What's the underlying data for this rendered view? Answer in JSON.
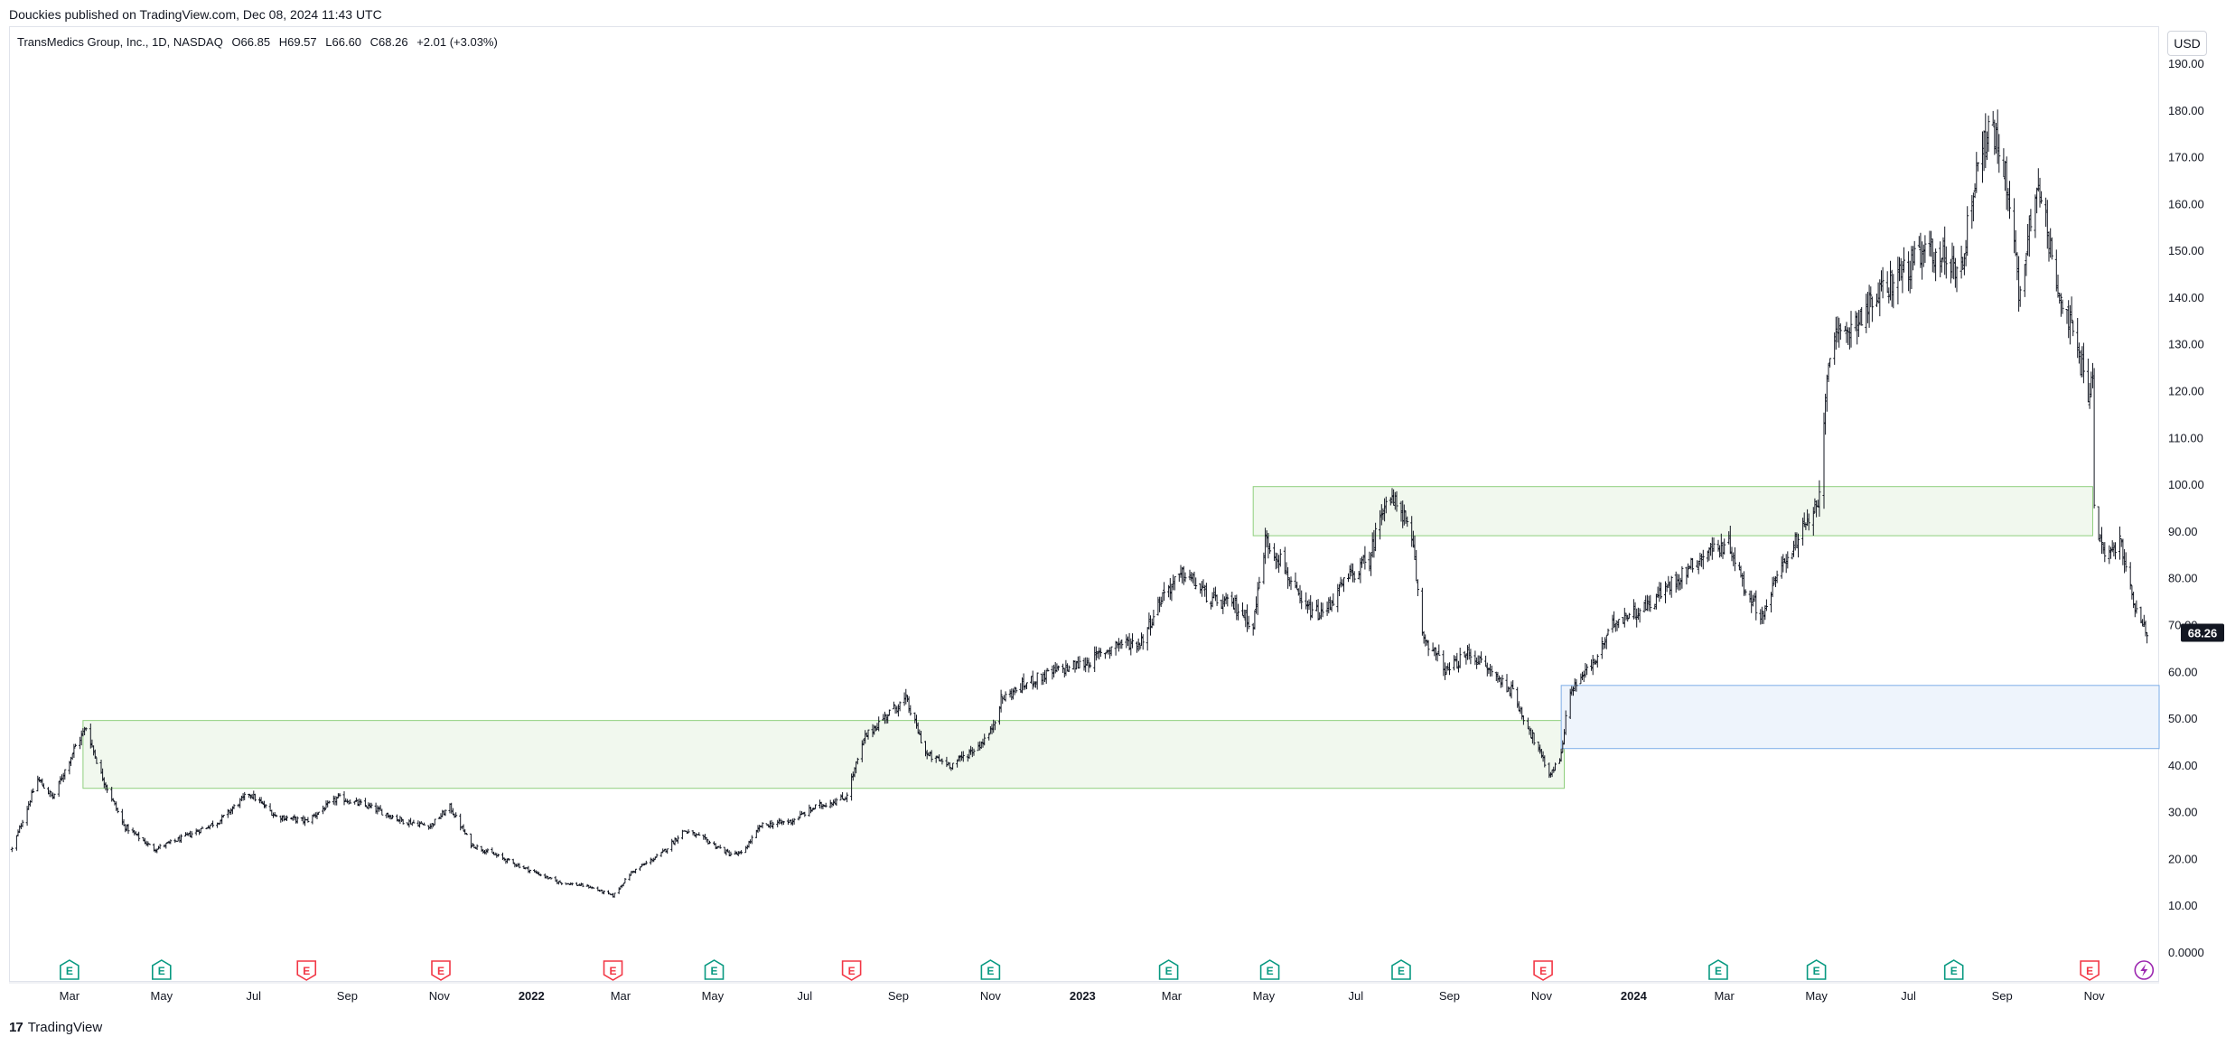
{
  "header": {
    "published": "Douckies published on TradingView.com, Dec 08, 2024 11:43 UTC"
  },
  "legend": {
    "symbol": "TransMedics Group, Inc., 1D, NASDAQ",
    "open": "O66.85",
    "high": "H69.57",
    "low": "L66.60",
    "close": "C68.26",
    "change": "+2.01 (+3.03%)"
  },
  "currency_button": "USD",
  "footer": {
    "brand": "TradingView",
    "logo_text": "17"
  },
  "colors": {
    "candle": "#131722",
    "green_zone_fill": "#f1f8ee",
    "green_zone_border": "#8fcf7d",
    "blue_zone_fill": "#eef4fc",
    "blue_zone_border": "#7eaee8",
    "earnings_green": "#089981",
    "earnings_red": "#f23645",
    "dividend_purple": "#9c27b0",
    "price_label_bg": "#131722"
  },
  "chart_data": {
    "type": "ohlc",
    "title": "TransMedics Group, Inc., 1D, NASDAQ",
    "ylim": [
      0,
      190
    ],
    "y_ticks": [
      "190.00",
      "180.00",
      "170.00",
      "160.00",
      "150.00",
      "140.00",
      "130.00",
      "120.00",
      "110.00",
      "100.00",
      "90.00",
      "80.00",
      "70.00",
      "60.00",
      "50.00",
      "40.00",
      "30.00",
      "20.00",
      "10.00",
      "0.0000"
    ],
    "y_tick_values": [
      190,
      180,
      170,
      160,
      150,
      140,
      130,
      120,
      110,
      100,
      90,
      80,
      70,
      60,
      50,
      40,
      30,
      20,
      10,
      0
    ],
    "x_ticks": [
      {
        "label": "Mar",
        "date": "2021-03-01",
        "bold": false
      },
      {
        "label": "May",
        "date": "2021-05-01",
        "bold": false
      },
      {
        "label": "Jul",
        "date": "2021-07-01",
        "bold": false
      },
      {
        "label": "Sep",
        "date": "2021-09-01",
        "bold": false
      },
      {
        "label": "Nov",
        "date": "2021-11-01",
        "bold": false
      },
      {
        "label": "2022",
        "date": "2022-01-01",
        "bold": true
      },
      {
        "label": "Mar",
        "date": "2022-03-01",
        "bold": false
      },
      {
        "label": "May",
        "date": "2022-05-01",
        "bold": false
      },
      {
        "label": "Jul",
        "date": "2022-07-01",
        "bold": false
      },
      {
        "label": "Sep",
        "date": "2022-09-01",
        "bold": false
      },
      {
        "label": "Nov",
        "date": "2022-11-01",
        "bold": false
      },
      {
        "label": "2023",
        "date": "2023-01-01",
        "bold": true
      },
      {
        "label": "Mar",
        "date": "2023-03-01",
        "bold": false
      },
      {
        "label": "May",
        "date": "2023-05-01",
        "bold": false
      },
      {
        "label": "Jul",
        "date": "2023-07-01",
        "bold": false
      },
      {
        "label": "Sep",
        "date": "2023-09-01",
        "bold": false
      },
      {
        "label": "Nov",
        "date": "2023-11-01",
        "bold": false
      },
      {
        "label": "2024",
        "date": "2024-01-01",
        "bold": true
      },
      {
        "label": "Mar",
        "date": "2024-03-01",
        "bold": false
      },
      {
        "label": "May",
        "date": "2024-05-01",
        "bold": false
      },
      {
        "label": "Jul",
        "date": "2024-07-01",
        "bold": false
      },
      {
        "label": "Sep",
        "date": "2024-09-01",
        "bold": false
      },
      {
        "label": "Nov",
        "date": "2024-11-01",
        "bold": false
      }
    ],
    "x_range": [
      "2021-01-20",
      "2024-12-14"
    ],
    "last_price": "68.26",
    "last_value": 68.26,
    "price_path": [
      [
        "2021-01-22",
        22
      ],
      [
        "2021-02-08",
        37
      ],
      [
        "2021-02-18",
        33
      ],
      [
        "2021-03-05",
        44
      ],
      [
        "2021-03-12",
        48
      ],
      [
        "2021-03-22",
        38
      ],
      [
        "2021-04-06",
        27
      ],
      [
        "2021-04-26",
        22
      ],
      [
        "2021-05-12",
        24
      ],
      [
        "2021-06-08",
        28
      ],
      [
        "2021-06-28",
        34
      ],
      [
        "2021-07-16",
        29
      ],
      [
        "2021-08-05",
        28
      ],
      [
        "2021-08-26",
        33
      ],
      [
        "2021-09-16",
        31
      ],
      [
        "2021-10-08",
        28
      ],
      [
        "2021-10-26",
        27
      ],
      [
        "2021-11-08",
        31
      ],
      [
        "2021-11-22",
        23
      ],
      [
        "2021-12-20",
        19
      ],
      [
        "2022-01-18",
        15
      ],
      [
        "2022-02-08",
        14
      ],
      [
        "2022-02-24",
        12
      ],
      [
        "2022-03-08",
        17
      ],
      [
        "2022-03-28",
        21
      ],
      [
        "2022-04-12",
        26
      ],
      [
        "2022-04-26",
        24
      ],
      [
        "2022-05-12",
        21
      ],
      [
        "2022-05-20",
        21
      ],
      [
        "2022-06-02",
        27
      ],
      [
        "2022-06-22",
        28
      ],
      [
        "2022-07-08",
        31
      ],
      [
        "2022-07-28",
        33
      ],
      [
        "2022-08-10",
        46
      ],
      [
        "2022-08-25",
        51
      ],
      [
        "2022-09-06",
        54
      ],
      [
        "2022-09-20",
        42
      ],
      [
        "2022-10-06",
        40
      ],
      [
        "2022-10-24",
        44
      ],
      [
        "2022-11-01",
        47
      ],
      [
        "2022-11-08",
        54
      ],
      [
        "2022-11-28",
        58
      ],
      [
        "2022-12-14",
        60
      ],
      [
        "2023-01-05",
        62
      ],
      [
        "2023-01-24",
        66
      ],
      [
        "2023-02-08",
        66
      ],
      [
        "2023-02-24",
        77
      ],
      [
        "2023-03-10",
        81
      ],
      [
        "2023-03-28",
        75
      ],
      [
        "2023-04-12",
        74
      ],
      [
        "2023-04-24",
        70
      ],
      [
        "2023-05-02",
        88
      ],
      [
        "2023-05-12",
        84
      ],
      [
        "2023-05-26",
        74
      ],
      [
        "2023-06-08",
        72
      ],
      [
        "2023-06-26",
        80
      ],
      [
        "2023-07-10",
        84
      ],
      [
        "2023-07-20",
        97
      ],
      [
        "2023-07-31",
        95
      ],
      [
        "2023-08-08",
        86
      ],
      [
        "2023-08-14",
        68
      ],
      [
        "2023-08-30",
        60
      ],
      [
        "2023-09-14",
        64
      ],
      [
        "2023-09-28",
        60
      ],
      [
        "2023-10-12",
        56
      ],
      [
        "2023-10-26",
        46
      ],
      [
        "2023-11-06",
        38
      ],
      [
        "2023-11-13",
        41
      ],
      [
        "2023-11-20",
        56
      ],
      [
        "2023-12-06",
        62
      ],
      [
        "2023-12-20",
        71
      ],
      [
        "2024-01-10",
        74
      ],
      [
        "2024-01-30",
        80
      ],
      [
        "2024-02-20",
        86
      ],
      [
        "2024-03-05",
        87
      ],
      [
        "2024-03-14",
        78
      ],
      [
        "2024-03-26",
        72
      ],
      [
        "2024-04-10",
        84
      ],
      [
        "2024-04-22",
        90
      ],
      [
        "2024-05-02",
        95
      ],
      [
        "2024-05-09",
        128
      ],
      [
        "2024-05-24",
        134
      ],
      [
        "2024-06-10",
        140
      ],
      [
        "2024-06-28",
        146
      ],
      [
        "2024-07-16",
        150
      ],
      [
        "2024-08-05",
        146
      ],
      [
        "2024-08-16",
        170
      ],
      [
        "2024-08-26",
        176
      ],
      [
        "2024-09-06",
        162
      ],
      [
        "2024-09-12",
        140
      ],
      [
        "2024-09-24",
        166
      ],
      [
        "2024-10-04",
        148
      ],
      [
        "2024-10-16",
        134
      ],
      [
        "2024-10-28",
        120
      ],
      [
        "2024-10-31",
        123
      ],
      [
        "2024-11-01",
        94
      ],
      [
        "2024-11-08",
        84
      ],
      [
        "2024-11-18",
        88
      ],
      [
        "2024-11-26",
        76
      ],
      [
        "2024-12-06",
        68.26
      ]
    ],
    "zones": [
      {
        "color": "green",
        "x0": "2021-03-10",
        "x1": "2023-11-16",
        "y0": 35,
        "y1": 49.5
      },
      {
        "color": "green",
        "x0": "2023-04-24",
        "x1": "2024-10-31",
        "y0": 89,
        "y1": 99.5
      },
      {
        "color": "blue",
        "x0": "2023-11-14",
        "x1": "2024-12-14",
        "y0": 43.5,
        "y1": 57
      }
    ],
    "events": [
      {
        "type": "E",
        "color": "green",
        "date": "2021-03-01"
      },
      {
        "type": "E",
        "color": "green",
        "date": "2021-05-01"
      },
      {
        "type": "E",
        "color": "red",
        "date": "2021-08-05"
      },
      {
        "type": "E",
        "color": "red",
        "date": "2021-11-02"
      },
      {
        "type": "E",
        "color": "red",
        "date": "2022-02-24"
      },
      {
        "type": "E",
        "color": "green",
        "date": "2022-05-02"
      },
      {
        "type": "E",
        "color": "red",
        "date": "2022-08-01"
      },
      {
        "type": "E",
        "color": "green",
        "date": "2022-11-01"
      },
      {
        "type": "E",
        "color": "green",
        "date": "2023-02-27"
      },
      {
        "type": "E",
        "color": "green",
        "date": "2023-05-05"
      },
      {
        "type": "E",
        "color": "green",
        "date": "2023-07-31"
      },
      {
        "type": "E",
        "color": "red",
        "date": "2023-11-02"
      },
      {
        "type": "E",
        "color": "green",
        "date": "2024-02-26"
      },
      {
        "type": "E",
        "color": "green",
        "date": "2024-05-01"
      },
      {
        "type": "E",
        "color": "green",
        "date": "2024-07-31"
      },
      {
        "type": "E",
        "color": "red",
        "date": "2024-10-29"
      },
      {
        "type": "D",
        "color": "purple",
        "date": "2024-12-04"
      }
    ]
  }
}
